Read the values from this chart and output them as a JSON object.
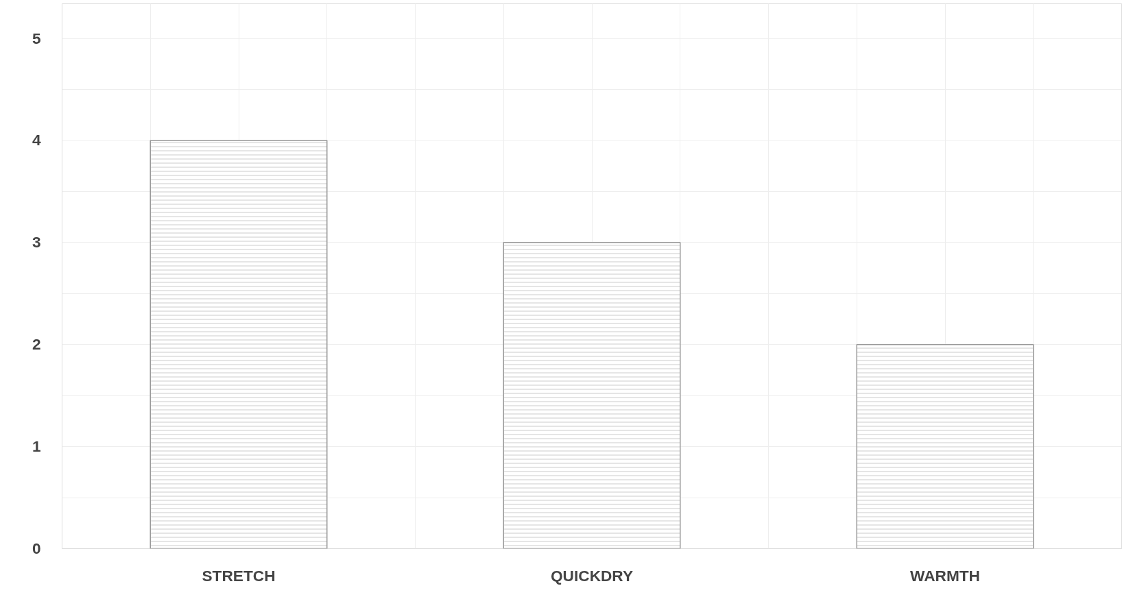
{
  "chart_data": {
    "type": "bar",
    "categories": [
      "STRETCH",
      "QUICKDRY",
      "WARMTH"
    ],
    "values": [
      4,
      3,
      2
    ],
    "color": "#999999",
    "ylim": [
      0,
      5.34
    ],
    "yticks": [
      0,
      {
        "value": 0.5,
        "label": null
      },
      1,
      {
        "value": 1.5,
        "label": null
      },
      2,
      {
        "value": 2.5,
        "label": null
      },
      3,
      {
        "value": 3.5,
        "label": null
      },
      4,
      {
        "value": 4.5,
        "label": null
      },
      5
    ],
    "grid": true
  }
}
